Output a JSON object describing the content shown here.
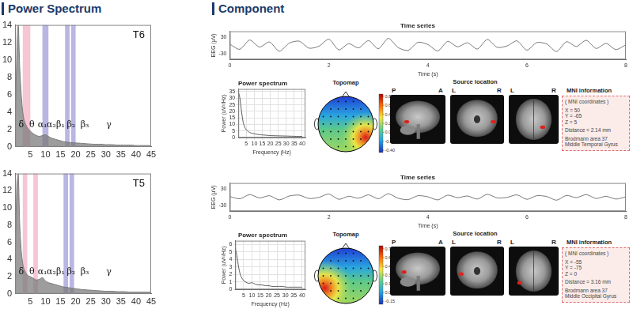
{
  "headings": {
    "left": "Power Spectrum",
    "right": "Component"
  },
  "chart_data": [
    {
      "type": "area",
      "title": "T6",
      "x": [
        0,
        0.5,
        1,
        1.5,
        2,
        2.5,
        3,
        4,
        5,
        6,
        7,
        8,
        9,
        10,
        11,
        12,
        13,
        14,
        15,
        16,
        18,
        20,
        22,
        24,
        26,
        28,
        30,
        32,
        34,
        36,
        38,
        40,
        42,
        44,
        45
      ],
      "values": [
        3,
        10,
        14,
        9,
        6,
        4,
        3,
        2.2,
        1.8,
        1.5,
        1.3,
        1.2,
        1.3,
        1.4,
        1.2,
        1,
        0.9,
        0.8,
        0.7,
        0.6,
        0.5,
        0.45,
        0.4,
        0.35,
        0.3,
        0.3,
        0.25,
        0.25,
        0.2,
        0.2,
        0.2,
        0.15,
        0.15,
        0.15,
        0.15
      ],
      "color": "#7a7a7a",
      "xlim": [
        0,
        45
      ],
      "xticks": [
        5,
        10,
        15,
        20,
        25,
        30,
        35,
        40,
        45
      ],
      "ylim": [
        0,
        14
      ],
      "yticks": [
        0,
        2,
        4,
        6,
        8,
        10,
        12,
        14
      ],
      "grid": false,
      "bands": [
        {
          "from": 2.5,
          "to": 5,
          "color": "#f7c6d4"
        },
        {
          "from": 9,
          "to": 11,
          "color": "#b9b6e3"
        },
        {
          "from": 16.5,
          "to": 18,
          "color": "#b9b6e3"
        },
        {
          "from": 18.5,
          "to": 20,
          "color": "#b9b6e3"
        }
      ],
      "annotations": [
        {
          "text": "δ",
          "x": 2,
          "y": 2
        },
        {
          "text": "θ",
          "x": 5.5,
          "y": 2
        },
        {
          "text": "α₁",
          "x": 9,
          "y": 2
        },
        {
          "text": "α₂",
          "x": 12,
          "y": 2
        },
        {
          "text": "β₁",
          "x": 15,
          "y": 2
        },
        {
          "text": "β₂",
          "x": 18.5,
          "y": 2
        },
        {
          "text": "β₃",
          "x": 23,
          "y": 2
        },
        {
          "text": "γ",
          "x": 31,
          "y": 2
        }
      ]
    },
    {
      "type": "area",
      "title": "T5",
      "x": [
        0,
        0.5,
        1,
        1.5,
        2,
        2.5,
        3,
        4,
        5,
        6,
        7,
        8,
        9,
        10,
        11,
        12,
        13,
        14,
        15,
        16,
        18,
        20,
        22,
        24,
        26,
        28,
        30,
        32,
        34,
        36,
        38,
        40,
        42,
        44,
        45
      ],
      "values": [
        4,
        12,
        14,
        8,
        5,
        3.5,
        2.8,
        2.2,
        2,
        1.8,
        1.6,
        1.7,
        1.9,
        1.5,
        1.3,
        1.2,
        1.1,
        1,
        0.9,
        0.8,
        0.7,
        0.6,
        0.5,
        0.45,
        0.4,
        0.35,
        0.3,
        0.3,
        0.25,
        0.25,
        0.2,
        0.2,
        0.2,
        0.2,
        0.2
      ],
      "color": "#7a7a7a",
      "xlim": [
        0,
        45
      ],
      "xticks": [
        5,
        10,
        15,
        20,
        25,
        30,
        35,
        40,
        45
      ],
      "ylim": [
        0,
        14
      ],
      "yticks": [
        0,
        2,
        4,
        6,
        8,
        10,
        12,
        14
      ],
      "grid": false,
      "bands": [
        {
          "from": 2.5,
          "to": 4,
          "color": "#f7c6d4"
        },
        {
          "from": 6,
          "to": 7.5,
          "color": "#f7c6d4"
        },
        {
          "from": 16,
          "to": 17.5,
          "color": "#b9b6e3"
        },
        {
          "from": 18,
          "to": 19.5,
          "color": "#b9b6e3"
        }
      ],
      "annotations": [
        {
          "text": "δ",
          "x": 2,
          "y": 2
        },
        {
          "text": "θ",
          "x": 5.5,
          "y": 2
        },
        {
          "text": "α₁",
          "x": 9,
          "y": 2
        },
        {
          "text": "α₂",
          "x": 12,
          "y": 2
        },
        {
          "text": "β₁",
          "x": 15,
          "y": 2
        },
        {
          "text": "β₂",
          "x": 18.5,
          "y": 2
        },
        {
          "text": "β₃",
          "x": 23,
          "y": 2
        },
        {
          "text": "γ",
          "x": 31,
          "y": 2
        }
      ]
    },
    {
      "type": "line",
      "title": "Time series",
      "x_label": "Time (s)",
      "y_label": "EEG (μV)",
      "x": [
        0,
        0.2,
        0.4,
        0.6,
        0.8,
        1,
        1.2,
        1.4,
        1.6,
        1.8,
        2,
        2.2,
        2.4,
        2.6,
        2.8,
        3,
        3.2,
        3.4,
        3.6,
        3.8,
        4,
        4.2,
        4.4,
        4.6,
        4.8,
        5,
        5.2,
        5.4,
        5.6,
        5.8,
        6,
        6.2,
        6.4,
        6.6,
        6.8,
        7,
        7.2,
        7.4,
        7.6,
        7.8,
        8
      ],
      "values": [
        4,
        -14,
        19,
        -6,
        12,
        -21,
        8,
        15,
        -10,
        -3,
        22,
        -16,
        6,
        -9,
        17,
        -12,
        25,
        -8,
        -18,
        11,
        3,
        -20,
        14,
        -5,
        9,
        -13,
        21,
        -7,
        -2,
        16,
        -17,
        10,
        5,
        -22,
        13,
        -4,
        18,
        -11,
        7,
        -15,
        2
      ],
      "color": "#555555",
      "xlim": [
        0,
        8
      ],
      "xticks": [
        0,
        2,
        4,
        6,
        8
      ],
      "ylim": [
        -50,
        50
      ],
      "yticks": [
        -30,
        30
      ],
      "grid": false
    },
    {
      "type": "line",
      "title": "Power spectrum",
      "x_label": "Frequency (Hz)",
      "y_label": "Power (uV²/Hz)",
      "x": [
        0,
        1,
        2,
        3,
        4,
        5,
        6,
        7,
        8,
        10,
        12,
        14,
        16,
        18,
        20,
        22,
        25,
        28,
        31,
        34,
        37,
        40
      ],
      "values": [
        35,
        30,
        20,
        12,
        8,
        6,
        5,
        4,
        3.5,
        3,
        2.5,
        2.2,
        2,
        1.8,
        1.6,
        1.5,
        1.4,
        1.3,
        1.2,
        1.1,
        1,
        1
      ],
      "color": "#333333",
      "xlim": [
        0,
        42
      ],
      "xticks": [
        5,
        10,
        15,
        20,
        25,
        30,
        35,
        40
      ],
      "ylim": [
        0,
        37
      ],
      "yticks": [
        0,
        5,
        10,
        15,
        20,
        25,
        30,
        35
      ],
      "grid": true
    },
    {
      "type": "line",
      "title": "Time series",
      "x_label": "Time (s)",
      "y_label": "EEG (μV)",
      "x": [
        0,
        0.2,
        0.4,
        0.6,
        0.8,
        1,
        1.2,
        1.4,
        1.6,
        1.8,
        2,
        2.2,
        2.4,
        2.6,
        2.8,
        3,
        3.2,
        3.4,
        3.6,
        3.8,
        4,
        4.2,
        4.4,
        4.6,
        4.8,
        5,
        5.2,
        5.4,
        5.6,
        5.8,
        6,
        6.2,
        6.4,
        6.6,
        6.8,
        7,
        7.2,
        7.4,
        7.6,
        7.8,
        8
      ],
      "values": [
        2,
        -6,
        9,
        -3,
        5,
        -10,
        4,
        7,
        -5,
        -1,
        11,
        -8,
        3,
        -4,
        8,
        -6,
        12,
        -4,
        -9,
        5,
        1,
        -10,
        7,
        -2,
        4,
        -7,
        10,
        -3,
        -1,
        8,
        -8,
        5,
        2,
        -11,
        6,
        -2,
        9,
        -5,
        3,
        -7,
        1
      ],
      "color": "#555555",
      "xlim": [
        0,
        8
      ],
      "xticks": [
        0,
        2,
        4,
        6,
        8
      ],
      "ylim": [
        -50,
        50
      ],
      "yticks": [
        -30,
        30
      ],
      "grid": false
    },
    {
      "type": "line",
      "title": "Power spectrum",
      "x_label": "Frequency (Hz)",
      "y_label": "Power (uV²/Hz)",
      "x": [
        0,
        1,
        2,
        3,
        4,
        5,
        6,
        7,
        8,
        10,
        12,
        14,
        16,
        18,
        20,
        22,
        25,
        28,
        31,
        34,
        37,
        40
      ],
      "values": [
        5.5,
        4.5,
        3,
        2,
        1.5,
        1.2,
        1,
        0.9,
        0.8,
        0.9,
        0.7,
        0.6,
        0.6,
        0.5,
        0.5,
        0.4,
        0.4,
        0.4,
        0.3,
        0.3,
        0.3,
        0.3
      ],
      "color": "#333333",
      "xlim": [
        0,
        42
      ],
      "xticks": [
        5,
        10,
        15,
        20,
        25,
        30,
        35,
        40
      ],
      "ylim": [
        0,
        6.5
      ],
      "yticks": [
        0,
        1,
        2,
        3,
        4,
        5,
        6
      ],
      "grid": true
    }
  ],
  "components": [
    {
      "topomap": {
        "title": "Topomap",
        "colorbar_range": [
          -0.45,
          0.85
        ],
        "colorbar_ticks": [
          {
            "value": 0.8,
            "label": "0.80"
          },
          {
            "value": 0.6,
            "label": "0.60"
          },
          {
            "value": 0.4,
            "label": "0.40"
          },
          {
            "value": 0.2,
            "label": "0.20"
          },
          {
            "value": 0,
            "label": "0.00"
          },
          {
            "value": -0.2,
            "label": "-0.20"
          },
          {
            "value": -0.4,
            "label": "-0.40"
          }
        ]
      },
      "source_location": {
        "title": "Source location",
        "views": [
          [
            "P",
            "A"
          ],
          [
            "L",
            "R"
          ],
          [
            "L",
            "R"
          ]
        ]
      },
      "mni": {
        "title": "MNI information",
        "subtitle": "( MNI coordinates )",
        "coordinates": [
          "X = 50",
          "Y = -65",
          "Z = 5"
        ],
        "distance": "Distance = 2.14 mm",
        "area": "Brodmann area 37",
        "region": "Middle Temporal Gyrus"
      }
    },
    {
      "topomap": {
        "title": "Topomap",
        "colorbar_range": [
          -0.2,
          0.8
        ],
        "colorbar_ticks": [
          {
            "value": 0.75,
            "label": "0.75"
          },
          {
            "value": 0.6,
            "label": "0.60"
          },
          {
            "value": 0.45,
            "label": "0.45"
          },
          {
            "value": 0.3,
            "label": "0.30"
          },
          {
            "value": 0.15,
            "label": "0.15"
          },
          {
            "value": 0,
            "label": "0.00"
          },
          {
            "value": -0.15,
            "label": "-0.15"
          }
        ]
      },
      "source_location": {
        "title": "Source location",
        "views": [
          [
            "P",
            "A"
          ],
          [
            "L",
            "R"
          ],
          [
            "L",
            "R"
          ]
        ]
      },
      "mni": {
        "title": "MNI information",
        "subtitle": "( MNI coordinates )",
        "coordinates": [
          "X = -55",
          "Y = -75",
          "Z = 0"
        ],
        "distance": "Distance = 3.16 mm",
        "area": "Brodmann area 37",
        "region": "Middle Occipital Gyrus"
      }
    }
  ]
}
